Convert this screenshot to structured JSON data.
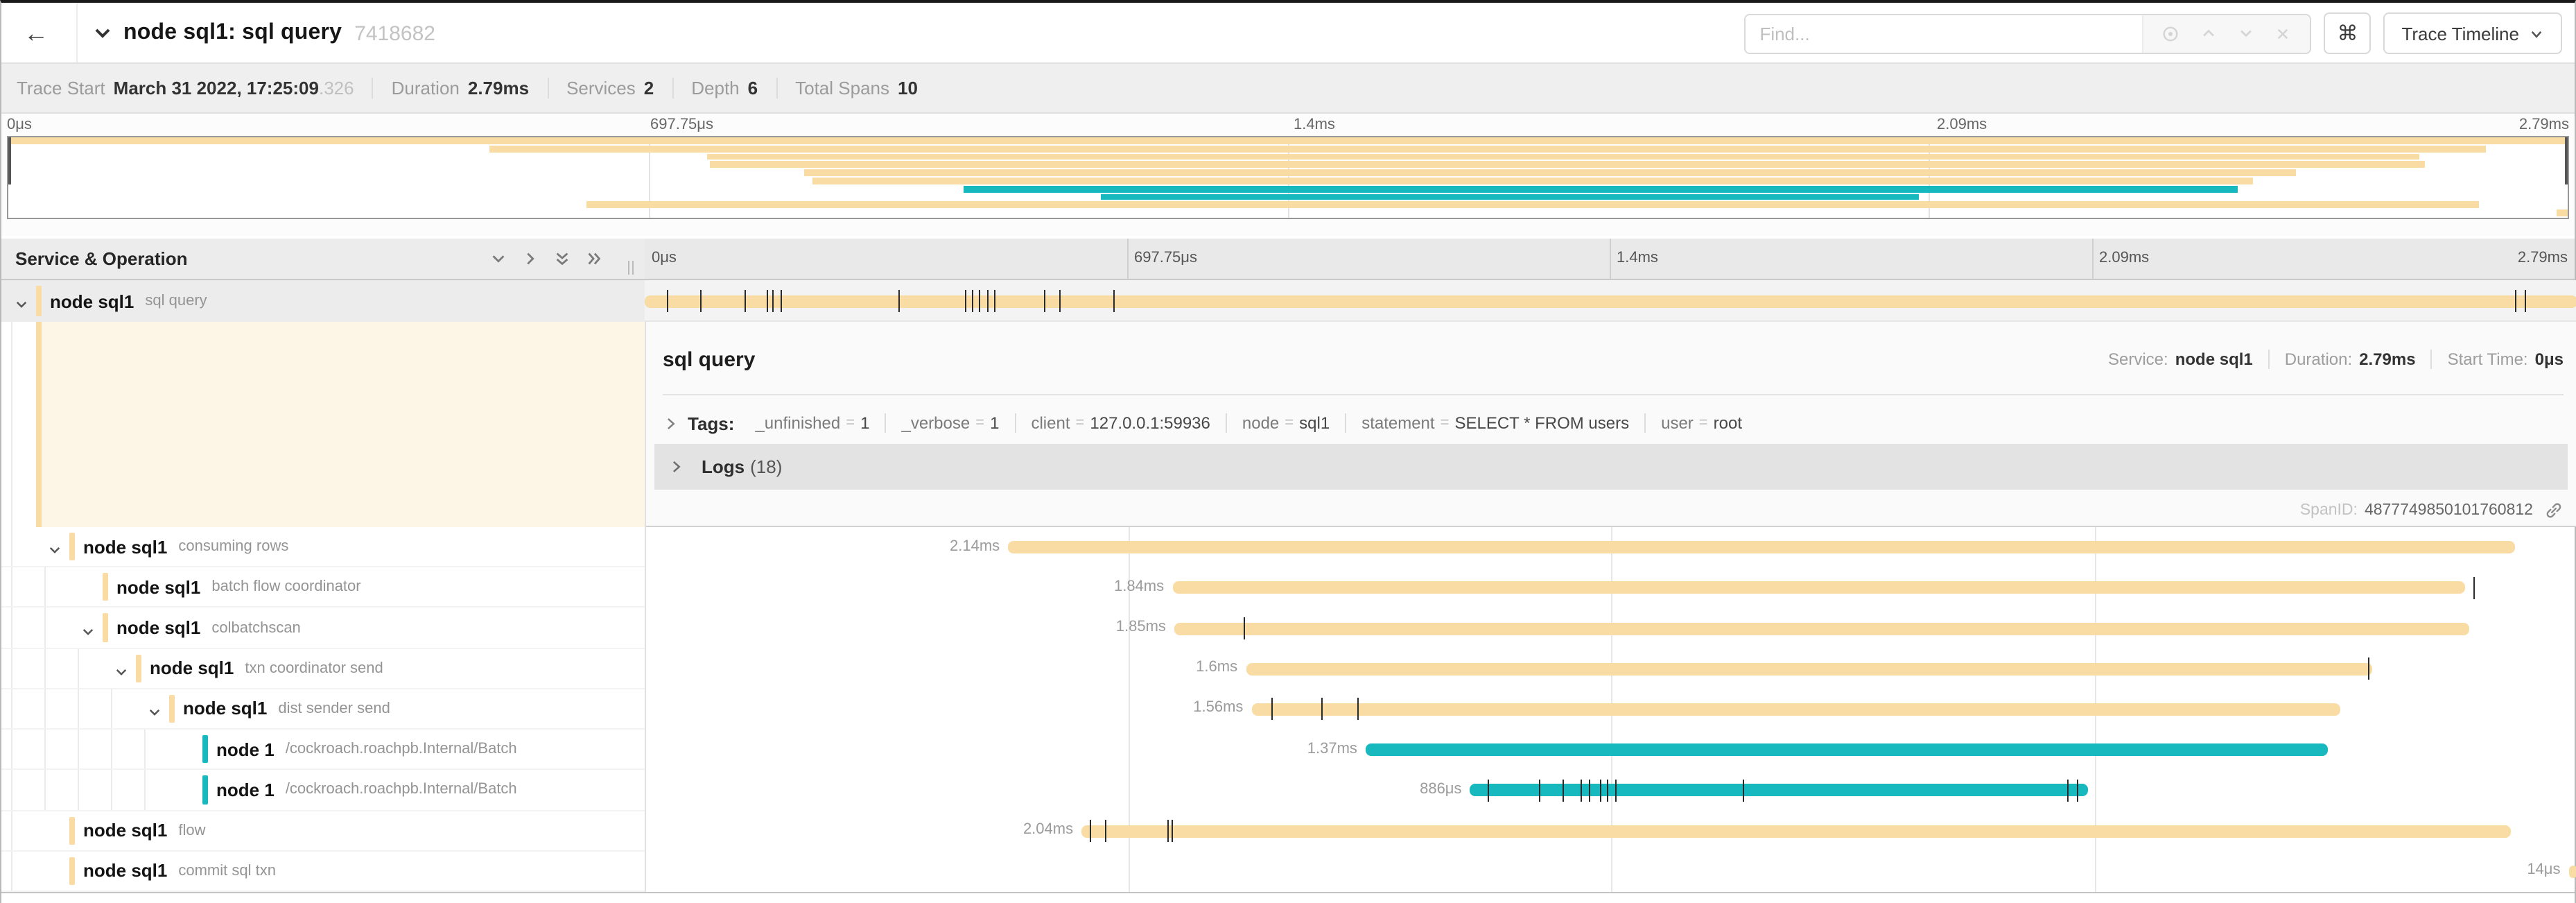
{
  "header": {
    "back_icon": "←",
    "title": "node sql1: sql query",
    "trace_id": "7418682",
    "find_placeholder": "Find...",
    "kbd_button": "⌘",
    "view_button_label": "Trace Timeline"
  },
  "stats": [
    {
      "label": "Trace Start",
      "value": "March 31 2022, 17:25:09",
      "suffix": ".326"
    },
    {
      "label": "Duration",
      "value": "2.79ms",
      "suffix": ""
    },
    {
      "label": "Services",
      "value": "2",
      "suffix": ""
    },
    {
      "label": "Depth",
      "value": "6",
      "suffix": ""
    },
    {
      "label": "Total Spans",
      "value": "10",
      "suffix": ""
    }
  ],
  "timeline_ticks": [
    "0μs",
    "697.75μs",
    "1.4ms",
    "2.09ms",
    "2.79ms"
  ],
  "columns": {
    "left_header": "Service & Operation"
  },
  "colors": {
    "tan": "#F8DCA4",
    "teal": "#17B8BE"
  },
  "detail": {
    "operation": "sql query",
    "service_label": "Service:",
    "service": "node sql1",
    "duration_label": "Duration:",
    "duration": "2.79ms",
    "start_label": "Start Time:",
    "start": "0μs",
    "tags_label": "Tags:",
    "tags": [
      {
        "key": "_unfinished",
        "value": "1"
      },
      {
        "key": "_verbose",
        "value": "1"
      },
      {
        "key": "client",
        "value": "127.0.0.1:59936"
      },
      {
        "key": "node",
        "value": "sql1"
      },
      {
        "key": "statement",
        "value": "SELECT * FROM users"
      },
      {
        "key": "user",
        "value": "root"
      }
    ],
    "logs_label": "Logs",
    "logs_count": "(18)",
    "span_id_label": "SpanID:",
    "span_id": "4877749850101760812"
  },
  "spans": [
    {
      "service": "node sql1",
      "operation": "sql query",
      "depth": 0,
      "chevron": true,
      "color": "tan",
      "start": 0,
      "end": 100,
      "label": "",
      "ticks": [
        1.15,
        2.88,
        5.13,
        6.28,
        6.6,
        7.05,
        13.14,
        16.54,
        16.92,
        17.3,
        17.69,
        18.08,
        20.64,
        21.47,
        24.23,
        96.78,
        97.3
      ],
      "selected": true
    },
    {
      "service": "node sql1",
      "operation": "consuming rows",
      "depth": 1,
      "chevron": true,
      "color": "tan",
      "start": 18.8,
      "end": 96.8,
      "label": "2.14ms",
      "ticks": []
    },
    {
      "service": "node sql1",
      "operation": "batch flow coordinator",
      "depth": 2,
      "chevron": false,
      "color": "tan",
      "start": 27.3,
      "end": 94.2,
      "label": "1.84ms",
      "ticks": [
        94.6
      ]
    },
    {
      "service": "node sql1",
      "operation": "colbatchscan",
      "depth": 2,
      "chevron": true,
      "color": "tan",
      "start": 27.4,
      "end": 94.4,
      "label": "1.85ms",
      "ticks": [
        31.0
      ]
    },
    {
      "service": "node sql1",
      "operation": "txn coordinator send",
      "depth": 3,
      "chevron": true,
      "color": "tan",
      "start": 31.1,
      "end": 89.4,
      "label": "1.6ms",
      "ticks": [
        89.2
      ]
    },
    {
      "service": "node sql1",
      "operation": "dist sender send",
      "depth": 4,
      "chevron": true,
      "color": "tan",
      "start": 31.4,
      "end": 87.7,
      "label": "1.56ms",
      "ticks": [
        32.4,
        35.0,
        36.9
      ]
    },
    {
      "service": "node 1",
      "operation": "/cockroach.roachpb.Internal/Batch",
      "depth": 5,
      "chevron": false,
      "color": "teal",
      "start": 37.3,
      "end": 87.1,
      "label": "1.37ms",
      "ticks": []
    },
    {
      "service": "node 1",
      "operation": "/cockroach.roachpb.Internal/Batch",
      "depth": 5,
      "chevron": false,
      "color": "teal",
      "start": 42.7,
      "end": 74.65,
      "label": "886μs",
      "ticks": [
        43.65,
        46.3,
        47.5,
        48.4,
        48.85,
        49.4,
        49.8,
        50.2,
        56.8,
        73.6,
        74.1
      ]
    },
    {
      "service": "node sql1",
      "operation": "flow",
      "depth": 1,
      "chevron": false,
      "color": "tan",
      "start": 22.6,
      "end": 96.55,
      "label": "2.04ms",
      "ticks": [
        23.0,
        23.8,
        27.06,
        27.28
      ]
    },
    {
      "service": "node sql1",
      "operation": "commit sql txn",
      "depth": 1,
      "chevron": false,
      "color": "tan",
      "start": 99.55,
      "end": 100,
      "label": "14μs",
      "ticks": []
    }
  ]
}
